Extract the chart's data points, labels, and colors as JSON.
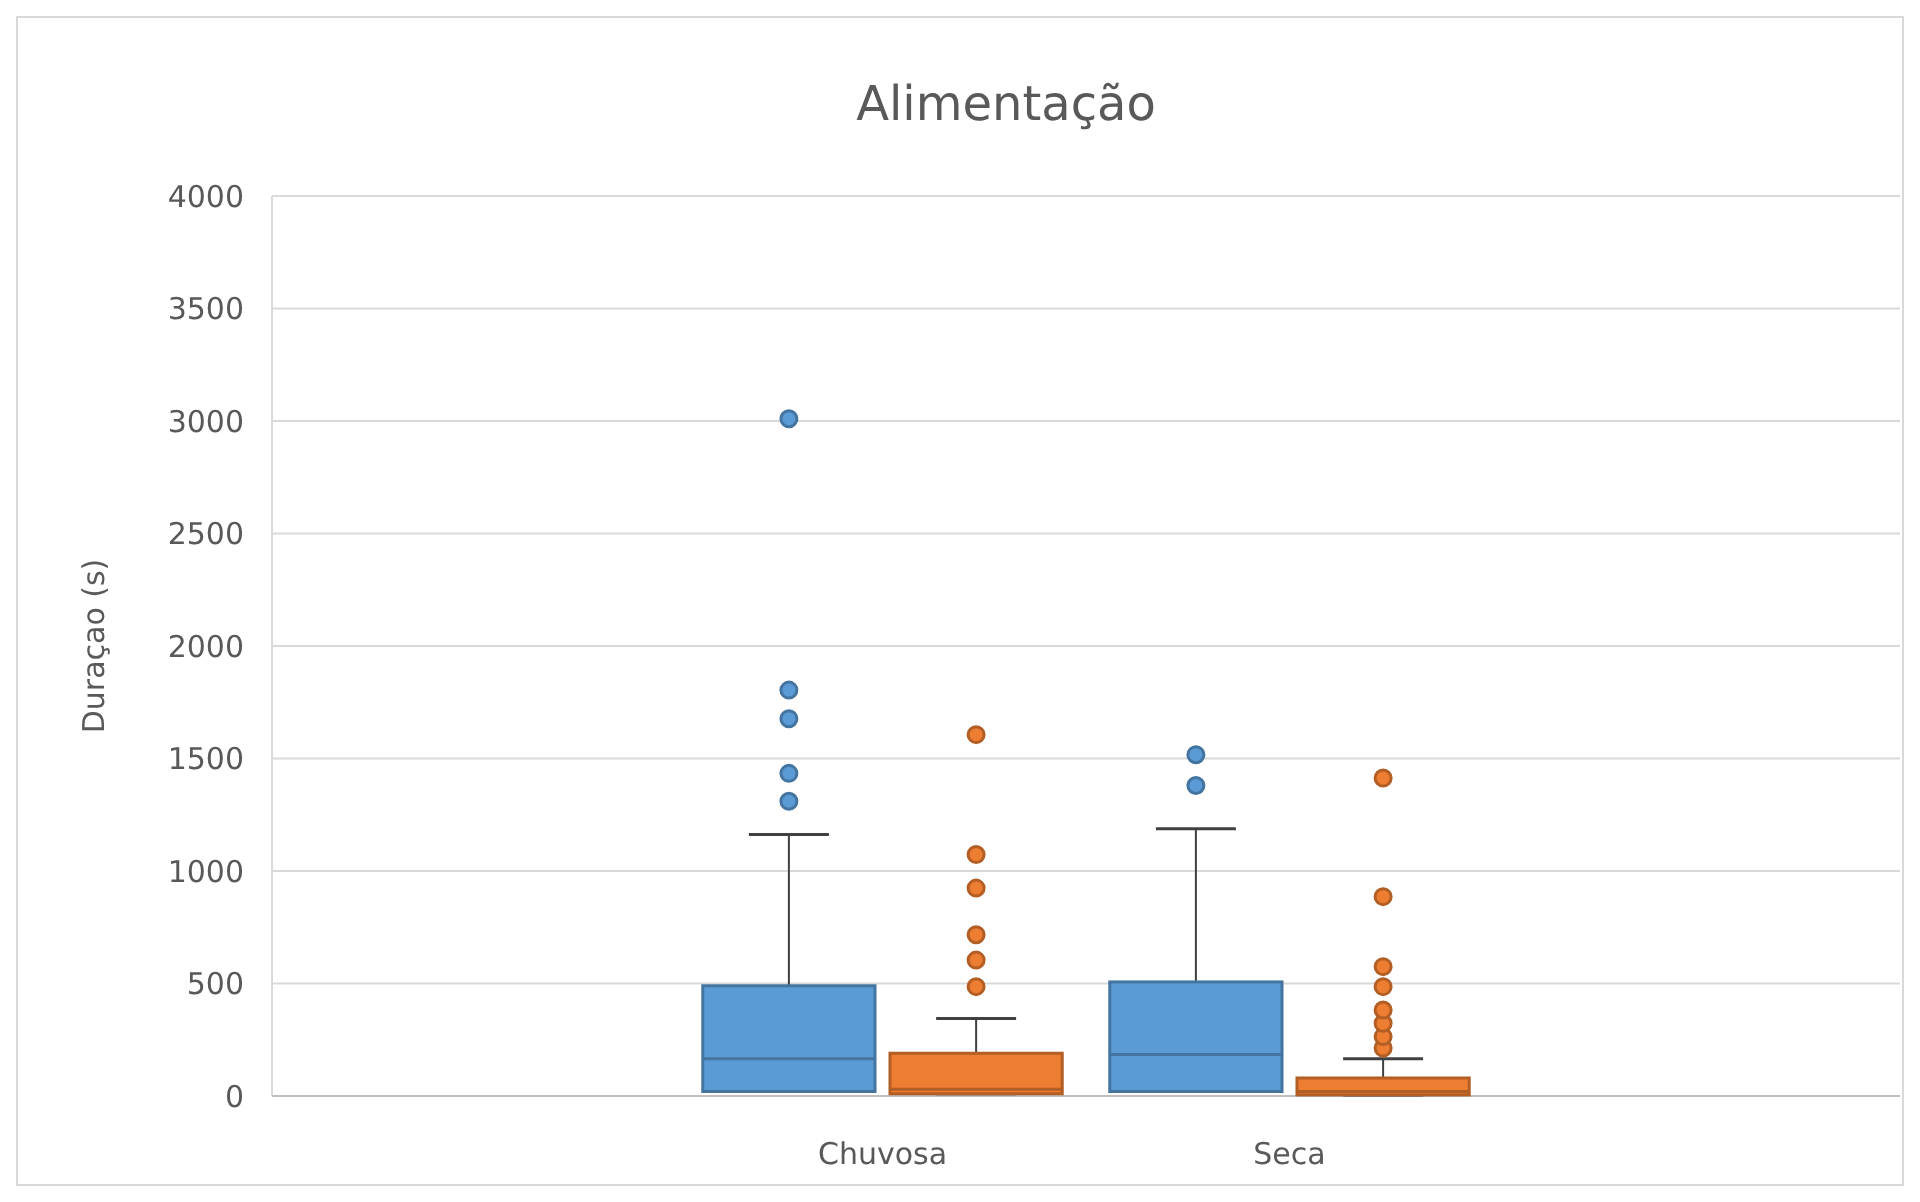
{
  "chart_data": {
    "type": "box",
    "title": "Alimentação",
    "ylabel": "Duraçao (s)",
    "categories": [
      null,
      "Chuvosa",
      "Seca",
      null
    ],
    "ylim": [
      0,
      4000
    ],
    "yticks": [
      0,
      500,
      1000,
      1500,
      2000,
      2500,
      3000,
      3500,
      4000
    ],
    "grid": "y",
    "series": [
      {
        "color": "#5b9bd5",
        "boxes": [
          null,
          {
            "low": 20,
            "q1": 20,
            "median": 166,
            "q3": 490,
            "high": 1162,
            "outliers": [
              1310,
              1434,
              1677,
              1804,
              3010
            ]
          },
          {
            "low": 20,
            "q1": 20,
            "median": 184,
            "q3": 507,
            "high": 1188,
            "outliers": [
              1380,
              1517
            ]
          },
          null
        ]
      },
      {
        "color": "#ed7d31",
        "boxes": [
          null,
          {
            "low": 10,
            "q1": 10,
            "median": 30,
            "q3": 190,
            "high": 344,
            "outliers": [
              486,
              604,
              717,
              924,
              1073,
              1606
            ]
          },
          {
            "low": 5,
            "q1": 5,
            "median": 20,
            "q3": 80,
            "high": 166,
            "outliers": [
              213,
              264,
              323,
              382,
              486,
              575,
              886,
              1413
            ]
          },
          null
        ]
      }
    ]
  }
}
